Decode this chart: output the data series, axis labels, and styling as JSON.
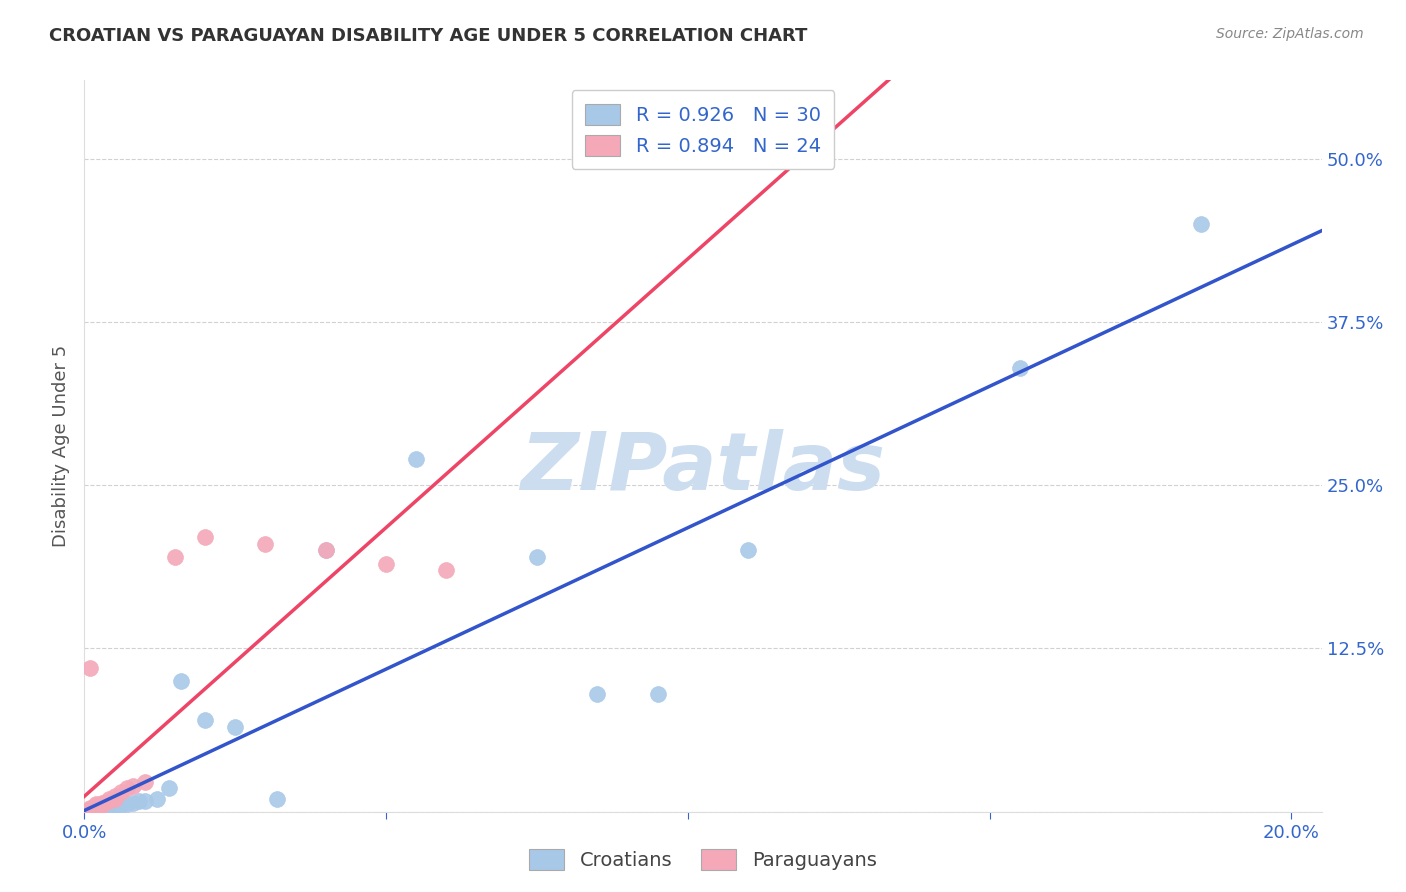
{
  "title": "CROATIAN VS PARAGUAYAN DISABILITY AGE UNDER 5 CORRELATION CHART",
  "source": "Source: ZipAtlas.com",
  "ylabel": "Disability Age Under 5",
  "background_color": "#ffffff",
  "croatian_color": "#a8c8e8",
  "croatian_edge_color": "#88a8d0",
  "paraguayan_color": "#f4a8b8",
  "paraguayan_edge_color": "#d888a0",
  "croatian_line_color": "#3355cc",
  "paraguayan_line_color": "#ee4466",
  "grid_color": "#cccccc",
  "watermark": "ZIPatlas",
  "watermark_color": "#ccddf0",
  "tick_color": "#3366cc",
  "title_color": "#333333",
  "source_color": "#888888",
  "ylabel_color": "#555555",
  "legend_text_color": "#3366cc",
  "legend_r_cro": "R = 0.926",
  "legend_n_cro": "N = 30",
  "legend_r_par": "R = 0.894",
  "legend_n_par": "N = 24",
  "croatian_x": [
    0.001,
    0.001,
    0.002,
    0.002,
    0.003,
    0.003,
    0.003,
    0.004,
    0.004,
    0.005,
    0.005,
    0.006,
    0.007,
    0.008,
    0.009,
    0.01,
    0.012,
    0.014,
    0.016,
    0.02,
    0.025,
    0.032,
    0.04,
    0.055,
    0.075,
    0.085,
    0.095,
    0.11,
    0.155,
    0.185
  ],
  "croatian_y": [
    0.001,
    0.002,
    0.002,
    0.003,
    0.002,
    0.003,
    0.004,
    0.003,
    0.005,
    0.004,
    0.005,
    0.005,
    0.006,
    0.007,
    0.008,
    0.008,
    0.01,
    0.018,
    0.1,
    0.07,
    0.065,
    0.01,
    0.2,
    0.27,
    0.195,
    0.09,
    0.09,
    0.2,
    0.34,
    0.45
  ],
  "paraguayan_x": [
    0.001,
    0.001,
    0.001,
    0.002,
    0.002,
    0.002,
    0.002,
    0.003,
    0.003,
    0.003,
    0.004,
    0.004,
    0.005,
    0.005,
    0.006,
    0.007,
    0.008,
    0.01,
    0.015,
    0.02,
    0.03,
    0.04,
    0.05,
    0.06
  ],
  "paraguayan_y": [
    0.002,
    0.003,
    0.11,
    0.003,
    0.004,
    0.005,
    0.006,
    0.005,
    0.006,
    0.007,
    0.008,
    0.01,
    0.01,
    0.012,
    0.015,
    0.018,
    0.02,
    0.023,
    0.195,
    0.21,
    0.205,
    0.2,
    0.19,
    0.185
  ],
  "xlim": [
    0.0,
    0.205
  ],
  "ylim": [
    0.0,
    0.56
  ],
  "xticks": [
    0.0,
    0.05,
    0.1,
    0.15,
    0.2
  ],
  "xtick_labels": [
    "0.0%",
    "",
    "",
    "",
    "20.0%"
  ],
  "yticks": [
    0.0,
    0.125,
    0.25,
    0.375,
    0.5
  ],
  "ytick_labels": [
    "",
    "12.5%",
    "25.0%",
    "37.5%",
    "50.0%"
  ]
}
